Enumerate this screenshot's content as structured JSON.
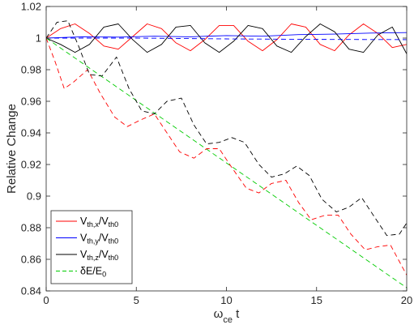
{
  "chart_data": {
    "type": "line",
    "title": "",
    "xlabel": {
      "symbol": "ω",
      "sub": "ce",
      "suffix": " t"
    },
    "ylabel": "Relative Change",
    "xlim": [
      0,
      20
    ],
    "ylim": [
      0.84,
      1.02
    ],
    "xticks": [
      "0",
      "5",
      "10",
      "15",
      "20"
    ],
    "yticks": [
      "0.84",
      "0.86",
      "0.88",
      "0.9",
      "0.92",
      "0.94",
      "0.96",
      "0.98",
      "1",
      "1.02"
    ],
    "grid": false,
    "legend_position": "bottom-left",
    "series": [
      {
        "id": "vx_solid",
        "legend": {
          "main": "V",
          "sub": "th,x",
          "sep": "/V",
          "sub2": "th0"
        },
        "color": "#ff0000",
        "dash": "solid",
        "x": [
          0,
          0.8,
          1.6,
          2.4,
          3.2,
          4.0,
          4.8,
          5.6,
          6.4,
          7.2,
          8.0,
          8.8,
          9.6,
          10.4,
          11.2,
          12.0,
          12.8,
          13.6,
          14.4,
          15.2,
          16.0,
          16.8,
          17.6,
          18.4,
          19.2,
          20.0
        ],
        "y": [
          1.0,
          1.006,
          1.009,
          1.003,
          0.995,
          0.993,
          1.001,
          1.009,
          1.006,
          0.997,
          0.992,
          0.999,
          1.008,
          1.008,
          0.998,
          0.992,
          0.999,
          1.009,
          1.007,
          0.996,
          0.992,
          1.002,
          1.009,
          1.003,
          0.994,
          0.996
        ]
      },
      {
        "id": "vy_solid",
        "legend": {
          "main": "V",
          "sub": "th,y",
          "sep": "/V",
          "sub2": "th0"
        },
        "color": "#0000ff",
        "dash": "solid",
        "x": [
          0,
          2,
          4,
          6,
          8,
          10,
          12,
          14,
          16,
          18,
          20
        ],
        "y": [
          1.0,
          1.0008,
          1.0006,
          1.0012,
          1.0008,
          1.0016,
          1.0012,
          1.0022,
          1.0025,
          1.0032,
          1.0035
        ]
      },
      {
        "id": "vz_solid",
        "legend": {
          "main": "V",
          "sub": "th,z",
          "sep": "/V",
          "sub2": "th0"
        },
        "color": "#000000",
        "dash": "solid",
        "x": [
          0,
          0.8,
          1.6,
          2.4,
          3.2,
          4.0,
          4.8,
          5.6,
          6.4,
          7.2,
          8.0,
          8.8,
          9.6,
          10.4,
          11.2,
          12.0,
          12.8,
          13.6,
          14.4,
          15.2,
          16.0,
          16.8,
          17.6,
          18.4,
          19.2,
          20.0
        ],
        "y": [
          1.0,
          0.996,
          0.991,
          0.996,
          1.007,
          1.009,
          0.999,
          0.991,
          0.996,
          1.007,
          1.008,
          0.997,
          0.991,
          0.998,
          1.008,
          1.006,
          0.995,
          0.991,
          1.001,
          1.009,
          1.004,
          0.993,
          0.991,
          1.002,
          1.007,
          0.99
        ]
      },
      {
        "id": "de_dashed",
        "legend": {
          "main": "δE/E",
          "sub": "0",
          "sep": "",
          "sub2": ""
        },
        "color": "#00cc00",
        "dash": "dashed",
        "x": [
          0,
          20
        ],
        "y": [
          1.0,
          0.842
        ]
      },
      {
        "id": "vx_dashed",
        "color": "#ff0000",
        "dash": "dashed",
        "x": [
          0,
          0.5,
          1.0,
          1.5,
          2.3,
          3.0,
          3.8,
          4.5,
          5.2,
          6.0,
          6.7,
          7.4,
          8.2,
          8.9,
          9.6,
          10.3,
          11.1,
          11.8,
          12.5,
          13.3,
          14.0,
          14.7,
          15.5,
          16.2,
          16.9,
          17.7,
          18.4,
          19.1,
          20.0
        ],
        "y": [
          1.0,
          0.985,
          0.968,
          0.972,
          0.98,
          0.965,
          0.95,
          0.944,
          0.948,
          0.952,
          0.94,
          0.928,
          0.924,
          0.93,
          0.93,
          0.918,
          0.905,
          0.902,
          0.908,
          0.91,
          0.896,
          0.885,
          0.888,
          0.888,
          0.876,
          0.866,
          0.868,
          0.869,
          0.85
        ]
      },
      {
        "id": "vz_dashed",
        "color": "#000000",
        "dash": "dashed",
        "x": [
          0,
          0.6,
          1.2,
          1.8,
          2.4,
          3.1,
          3.9,
          4.6,
          5.3,
          6.0,
          6.7,
          7.5,
          8.2,
          8.9,
          9.6,
          10.3,
          11.0,
          11.8,
          12.5,
          13.2,
          13.9,
          14.6,
          15.3,
          16.1,
          16.8,
          17.5,
          18.2,
          18.9,
          19.6,
          20.0
        ],
        "y": [
          1.0,
          1.01,
          1.011,
          0.995,
          0.977,
          0.976,
          0.988,
          0.968,
          0.954,
          0.952,
          0.96,
          0.962,
          0.945,
          0.933,
          0.934,
          0.937,
          0.934,
          0.92,
          0.912,
          0.914,
          0.919,
          0.913,
          0.898,
          0.89,
          0.893,
          0.899,
          0.887,
          0.875,
          0.876,
          0.883
        ]
      },
      {
        "id": "vy_dashed",
        "color": "#0000ff",
        "dash": "dashed",
        "x": [
          0,
          5,
          10,
          15,
          20
        ],
        "y": [
          1.0,
          1.0,
          0.9995,
          0.9992,
          0.999
        ]
      }
    ]
  }
}
